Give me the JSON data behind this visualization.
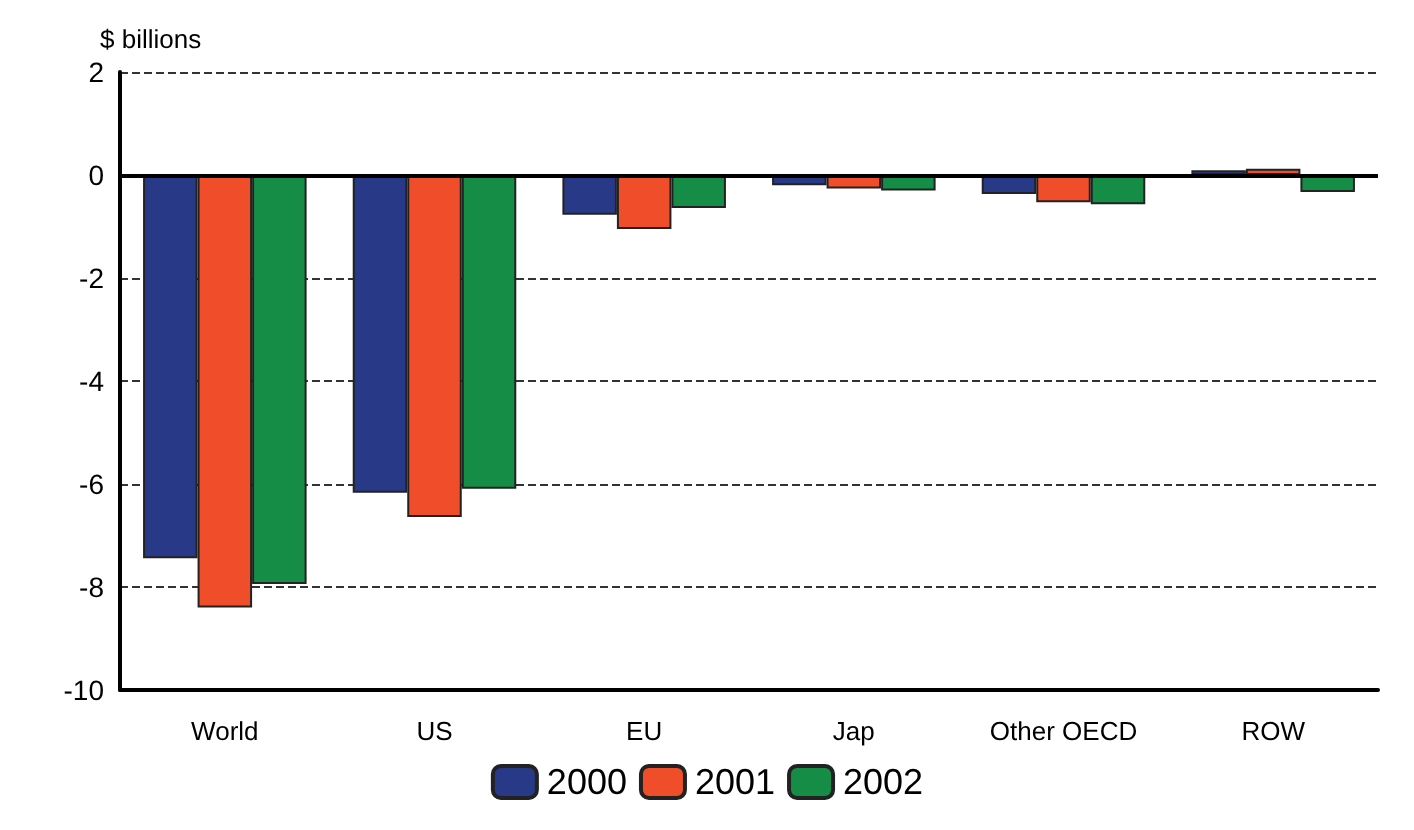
{
  "chart_data": {
    "type": "bar",
    "ylabel": "$ billions",
    "categories": [
      "World",
      "US",
      "EU",
      "Jap",
      "Other OECD",
      "ROW"
    ],
    "series": [
      {
        "name": "2000",
        "color": "#283a87",
        "values": [
          -7.44,
          -6.17,
          -0.77,
          -0.2,
          -0.37,
          0.09
        ]
      },
      {
        "name": "2001",
        "color": "#f04e2a",
        "values": [
          -8.4,
          -6.64,
          -1.05,
          -0.26,
          -0.53,
          0.12
        ]
      },
      {
        "name": "2002",
        "color": "#168d47",
        "values": [
          -7.94,
          -6.09,
          -0.64,
          -0.3,
          -0.57,
          -0.33
        ]
      }
    ],
    "ylim": [
      -10,
      2
    ],
    "yticks": [
      -10,
      -8,
      -6,
      -4,
      -2,
      0,
      2
    ],
    "grid": "y",
    "legend": "bottom",
    "ref_lines": [
      {
        "axis": "y",
        "value": 0,
        "color": "#000000",
        "line_style": "solid"
      }
    ]
  }
}
